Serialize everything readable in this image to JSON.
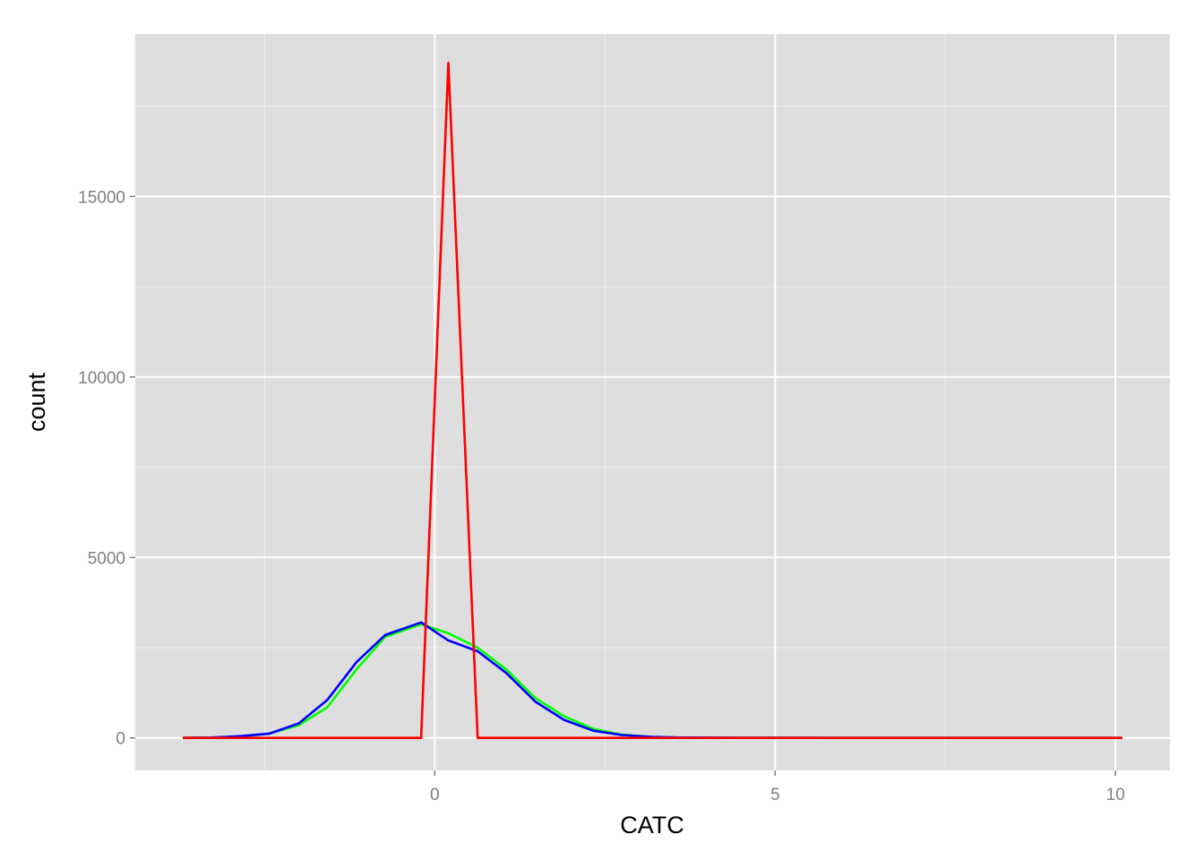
{
  "chart_data": {
    "type": "line",
    "title": "",
    "xlabel": "CATC",
    "ylabel": "count",
    "xlim": [
      -4.4,
      10.8
    ],
    "ylim": [
      -900,
      19500
    ],
    "x_ticks": [
      0,
      5,
      10
    ],
    "x_tick_labels": [
      "0",
      "5",
      "10"
    ],
    "y_ticks": [
      0,
      5000,
      10000,
      15000
    ],
    "y_tick_labels": [
      "0",
      "5000",
      "10000",
      "15000"
    ],
    "x_minor_ticks": [
      -2.5,
      2.5,
      7.5
    ],
    "y_minor_ticks": [
      2500,
      7500,
      12500,
      17500
    ],
    "grid": true,
    "legend": "none",
    "background": "#dedede",
    "grid_color": "#ffffff",
    "series": [
      {
        "color": "#00ff00",
        "x": [
          -3.7,
          -3.28,
          -2.85,
          -2.43,
          -2.0,
          -1.58,
          -1.15,
          -0.73,
          -0.2,
          0.2,
          0.63,
          1.05,
          1.48,
          1.9,
          2.33,
          2.75,
          3.18,
          3.6,
          4.5,
          6.0,
          8.0,
          10.1
        ],
        "y": [
          0,
          10,
          40,
          120,
          350,
          850,
          1900,
          2800,
          3150,
          2900,
          2500,
          1900,
          1100,
          600,
          250,
          90,
          30,
          10,
          5,
          2,
          1,
          0
        ]
      },
      {
        "color": "#0000ff",
        "x": [
          -3.7,
          -3.28,
          -2.85,
          -2.43,
          -2.0,
          -1.58,
          -1.15,
          -0.73,
          -0.2,
          0.2,
          0.63,
          1.05,
          1.48,
          1.9,
          2.33,
          2.75,
          3.18,
          3.6,
          4.5,
          6.0,
          8.0,
          10.1
        ],
        "y": [
          0,
          10,
          50,
          120,
          400,
          1050,
          2100,
          2850,
          3200,
          2700,
          2400,
          1800,
          1000,
          500,
          200,
          80,
          30,
          10,
          5,
          2,
          1,
          0
        ]
      },
      {
        "color": "#ff0000",
        "x": [
          -3.7,
          -0.2,
          0.2,
          0.63,
          1.05,
          4.0,
          8.0,
          10.1
        ],
        "y": [
          0,
          0,
          18700,
          0,
          0,
          0,
          0,
          0
        ]
      }
    ]
  }
}
